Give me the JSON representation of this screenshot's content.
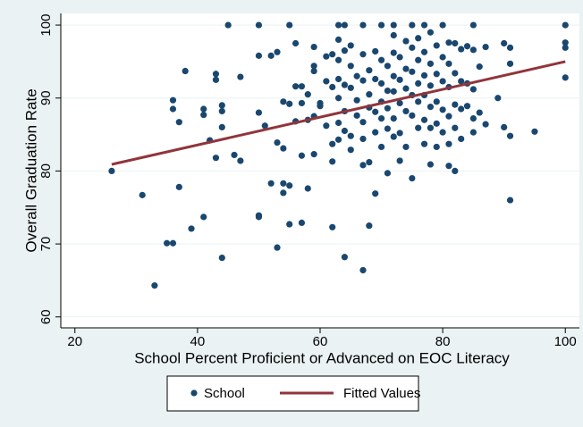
{
  "chart_data": {
    "type": "scatter",
    "x_label": "School Percent Proficient or Advanced on EOC Literacy",
    "y_label": "Overall Graduation Rate",
    "xlim": [
      17.7,
      102.3
    ],
    "ylim": [
      58.5,
      101.6
    ],
    "xticks": [
      20,
      40,
      60,
      80,
      100
    ],
    "yticks": [
      60,
      70,
      80,
      90,
      100
    ],
    "grid": true,
    "legend": "bottom",
    "series": [
      {
        "name": "School",
        "color": "#1a476f",
        "type": "scatter",
        "x": [
          26,
          31,
          33,
          35,
          36,
          36,
          36,
          37,
          37,
          38,
          39,
          41,
          41,
          41,
          42,
          43,
          43,
          43,
          44,
          44,
          44,
          44,
          45,
          46,
          47,
          47,
          50,
          50,
          50,
          50,
          50,
          51,
          52,
          52,
          53,
          53,
          53,
          54,
          54,
          54,
          54,
          55,
          55,
          55,
          55,
          56,
          56,
          56,
          57,
          57,
          57,
          57,
          58,
          58,
          58,
          59,
          59,
          59,
          59,
          59,
          60,
          60,
          61,
          61,
          61,
          62,
          62,
          62,
          62,
          62,
          63,
          63,
          63,
          63,
          63,
          63,
          63,
          64,
          64,
          64,
          64,
          64,
          64,
          65,
          65,
          65,
          65,
          65,
          66,
          66,
          66,
          67,
          67,
          67,
          67,
          67,
          67,
          67,
          68,
          68,
          68,
          68,
          68,
          69,
          69,
          69,
          69,
          69,
          70,
          70,
          70,
          70,
          70,
          70,
          71,
          71,
          71,
          71,
          71,
          72,
          72,
          72,
          72,
          72,
          72,
          72,
          73,
          73,
          73,
          73,
          73,
          74,
          74,
          74,
          74,
          74,
          75,
          75,
          75,
          75,
          75,
          75,
          76,
          76,
          76,
          76,
          76,
          77,
          77,
          77,
          77,
          77,
          77,
          78,
          78,
          78,
          78,
          78,
          78,
          79,
          79,
          79,
          79,
          79,
          80,
          80,
          80,
          80,
          80,
          81,
          81,
          81,
          81,
          81,
          81,
          82,
          82,
          82,
          82,
          82,
          83,
          83,
          83,
          83,
          84,
          84,
          84,
          85,
          85,
          85,
          85,
          85,
          86,
          86,
          87,
          87,
          89,
          90,
          90,
          91,
          91,
          91,
          91,
          95,
          100,
          100,
          100,
          100
        ],
        "values": [
          80,
          76.7,
          64.3,
          70.1,
          70.1,
          89.7,
          88.5,
          86.7,
          77.8,
          93.7,
          72.1,
          73.7,
          88.5,
          87.7,
          84.2,
          92.5,
          93.3,
          81.8,
          89,
          88.2,
          86,
          68.1,
          100,
          82.2,
          81.4,
          92.9,
          100,
          95.8,
          88,
          73.9,
          73.7,
          86.2,
          78.3,
          95.8,
          96.3,
          83.9,
          69.5,
          77,
          78.3,
          89.5,
          83.1,
          100,
          72.7,
          89.2,
          78,
          97.5,
          86.8,
          91.6,
          91.6,
          89.3,
          72.9,
          82.1,
          87,
          90.5,
          77.6,
          97,
          93.7,
          94.4,
          87.5,
          82.3,
          88.9,
          89.3,
          95.7,
          92.3,
          86.2,
          72.3,
          81.3,
          83.7,
          91.5,
          96,
          100,
          98,
          95.2,
          92.6,
          90,
          86.6,
          84.3,
          100,
          96.5,
          91.8,
          88.2,
          85.5,
          68.2,
          97.2,
          94.4,
          91.4,
          84.8,
          82.9,
          89.7,
          87.6,
          93,
          100,
          96,
          92.4,
          86.7,
          84.4,
          80.8,
          66.4,
          93.8,
          90.5,
          88.7,
          81.2,
          72.5,
          96.4,
          92.6,
          88.1,
          85.3,
          76.9,
          100,
          95.2,
          92,
          89.5,
          87.2,
          83.3,
          94.4,
          91,
          88.6,
          79.7,
          85.8,
          100,
          98.6,
          96.2,
          93,
          90.9,
          87.2,
          84.7,
          95.6,
          92.5,
          89.3,
          85.2,
          81.4,
          97.8,
          94,
          91.3,
          88.2,
          83.3,
          100,
          96.9,
          93.6,
          90.4,
          87.6,
          79,
          98.2,
          95.2,
          92,
          89.5,
          85.9,
          100,
          96.3,
          93.1,
          90.4,
          87,
          83.7,
          99,
          94.7,
          91.7,
          88.8,
          85.9,
          80.9,
          97.2,
          93.3,
          89.5,
          86.5,
          83.3,
          100,
          95.6,
          92.3,
          88.4,
          85.3,
          97.6,
          94.7,
          91.5,
          87.5,
          83.7,
          80.7,
          97.5,
          93.4,
          89.1,
          80,
          85.9,
          96.7,
          92.3,
          88.5,
          84.4,
          97.1,
          92,
          88.9,
          100,
          96.6,
          91.2,
          87.2,
          85.3,
          94.3,
          88,
          97,
          86.4,
          90,
          97.5,
          86,
          96.9,
          94.7,
          84.8,
          76,
          85.4,
          100,
          97.6,
          96.9,
          92.8
        ]
      },
      {
        "name": "Fitted Values",
        "color": "#90353b",
        "type": "line",
        "x": [
          26,
          100
        ],
        "values": [
          80.9,
          95
        ]
      }
    ]
  }
}
